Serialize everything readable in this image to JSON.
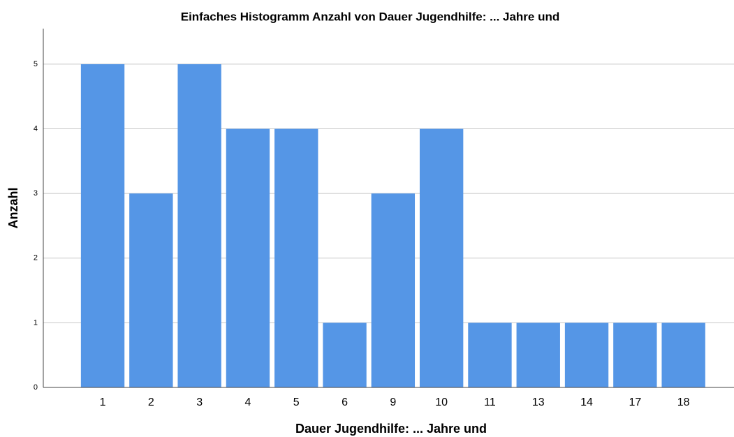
{
  "chart_data": {
    "type": "bar",
    "title": "Einfaches Histogramm Anzahl  von Dauer Jugendhilfe: ... Jahre und",
    "x_label": "Dauer Jugendhilfe: ... Jahre und",
    "y_label": "Anzahl",
    "categories": [
      "1",
      "2",
      "3",
      "4",
      "5",
      "6",
      "9",
      "10",
      "11",
      "13",
      "14",
      "17",
      "18"
    ],
    "values": [
      5,
      3,
      5,
      4,
      4,
      1,
      3,
      4,
      1,
      1,
      1,
      1,
      1
    ],
    "color": "#5596e6",
    "ylim": [
      0,
      5.55
    ],
    "yticks": [
      0,
      1,
      2,
      3,
      4,
      5
    ],
    "grid": true
  }
}
